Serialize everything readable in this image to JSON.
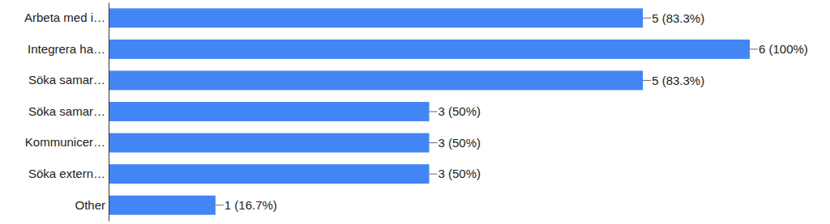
{
  "chart_data": {
    "type": "bar",
    "orientation": "horizontal",
    "categories": [
      "Arbeta med i…",
      "Integrera ha…",
      "Söka samar…",
      "Söka samar…",
      "Kommunicer…",
      "Söka extern…",
      "Other"
    ],
    "values": [
      5,
      6,
      5,
      3,
      3,
      3,
      1
    ],
    "value_labels": [
      "5 (83.3%)",
      "6 (100%)",
      "5 (83.3%)",
      "3 (50%)",
      "3 (50%)",
      "3 (50%)",
      "1 (16.7%)"
    ],
    "data_labels": true,
    "tick_labels": "y",
    "grid": false,
    "color": "#4285f4",
    "xlim": [
      0,
      6
    ]
  }
}
